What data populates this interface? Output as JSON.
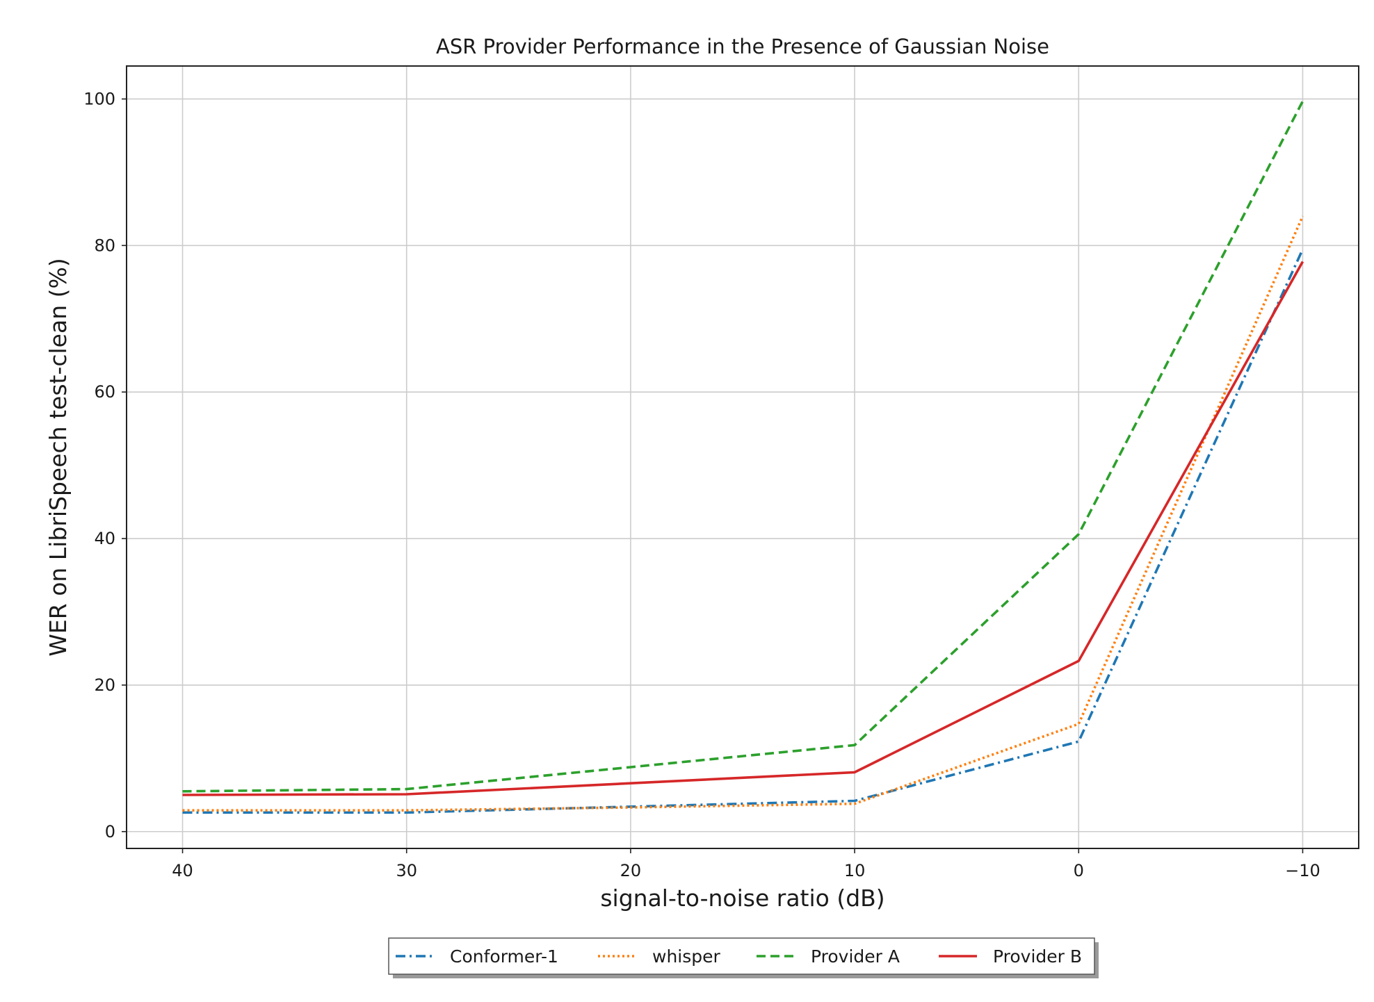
{
  "chart_data": {
    "type": "line",
    "title": "ASR Provider Performance in the Presence of Gaussian Noise",
    "xlabel": "signal-to-noise ratio (dB)",
    "ylabel": "WER on LibriSpeech test-clean (%)",
    "x": [
      40,
      30,
      20,
      10,
      0,
      -10
    ],
    "x_ticks": [
      40,
      30,
      20,
      10,
      0,
      -10
    ],
    "x_tick_labels": [
      "40",
      "30",
      "20",
      "10",
      "0",
      "−10"
    ],
    "x_axis_reversed": true,
    "xlim": [
      42.5,
      -12.5
    ],
    "y_ticks": [
      0,
      20,
      40,
      60,
      80,
      100
    ],
    "y_tick_labels": [
      "0",
      "20",
      "40",
      "60",
      "80",
      "100"
    ],
    "ylim": [
      -2.3,
      104.5
    ],
    "grid": true,
    "legend_position": "bottom-center",
    "series": [
      {
        "name": "Conformer-1",
        "values": [
          2.6,
          2.6,
          3.4,
          4.2,
          12.3,
          79.5
        ],
        "color": "#1f77b4",
        "linestyle": "dashdot"
      },
      {
        "name": "whisper",
        "values": [
          2.9,
          2.9,
          3.3,
          3.8,
          14.7,
          84.0
        ],
        "color": "#ff7f0e",
        "linestyle": "dotted"
      },
      {
        "name": "Provider A",
        "values": [
          5.5,
          5.8,
          8.8,
          11.8,
          40.6,
          99.7
        ],
        "color": "#2ca02c",
        "linestyle": "dashed"
      },
      {
        "name": "Provider B",
        "values": [
          5.0,
          5.1,
          6.6,
          8.1,
          23.3,
          77.8
        ],
        "color": "#d62728",
        "linestyle": "solid"
      }
    ]
  }
}
